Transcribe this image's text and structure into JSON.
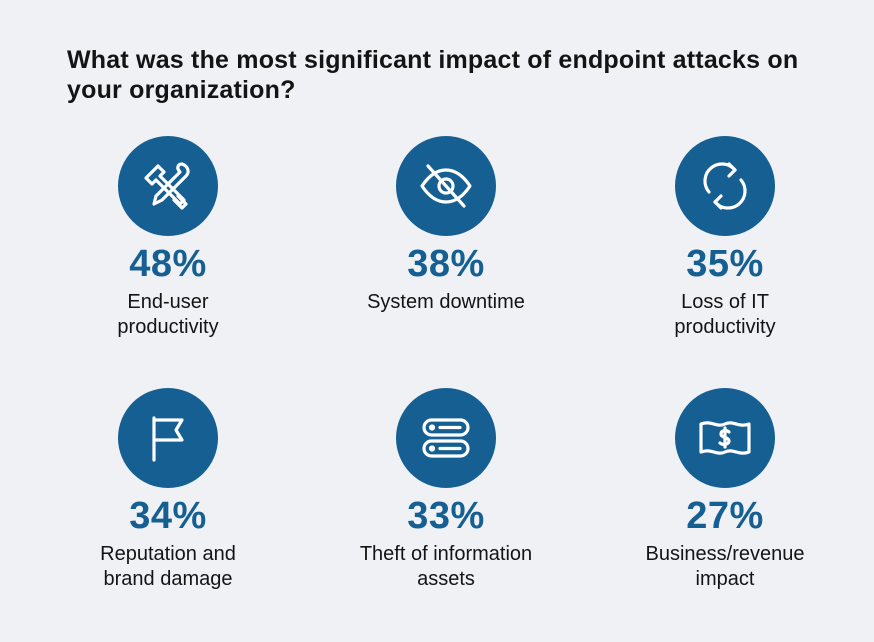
{
  "title": "What was the most significant impact of endpoint attacks on your organization?",
  "accent_color": "#155f93",
  "chart_data": {
    "type": "table",
    "title": "What was the most significant impact of endpoint attacks on your organization?",
    "unit": "%",
    "items": [
      {
        "label": "End-user\nproductivity",
        "value": 48,
        "display": "48%",
        "icon": "tools-icon"
      },
      {
        "label": "System downtime",
        "value": 38,
        "display": "38%",
        "icon": "eye-slash-icon"
      },
      {
        "label": "Loss of IT\nproductivity",
        "value": 35,
        "display": "35%",
        "icon": "refresh-icon"
      },
      {
        "label": "Reputation and\nbrand damage",
        "value": 34,
        "display": "34%",
        "icon": "flag-icon"
      },
      {
        "label": "Theft of information\nassets",
        "value": 33,
        "display": "33%",
        "icon": "server-icon"
      },
      {
        "label": "Business/revenue\nimpact",
        "value": 27,
        "display": "27%",
        "icon": "dollar-bill-icon"
      }
    ]
  }
}
